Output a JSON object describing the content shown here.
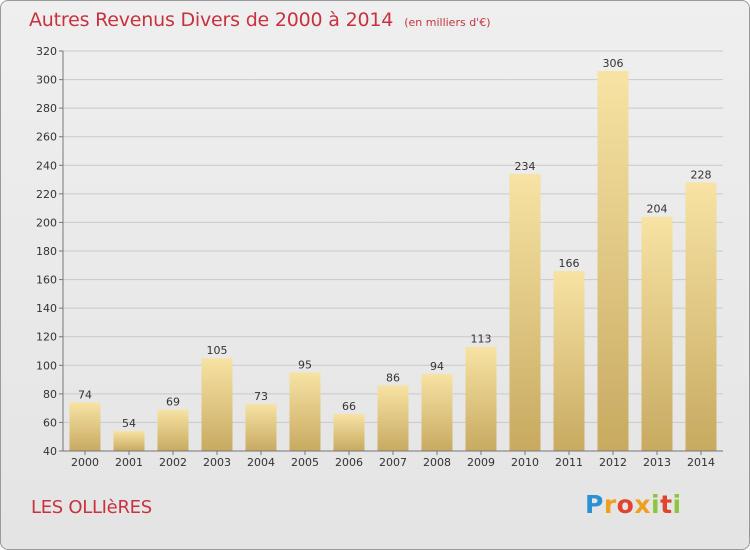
{
  "header": {
    "title": "Autres Revenus Divers de 2000 à 2014",
    "unit": "(en milliers d'€)"
  },
  "footer": {
    "commune": "LES OLLIèRES",
    "logo": "Proxiti"
  },
  "colors": {
    "title": "#c8323f",
    "bar_light": "#f6e09e",
    "bar_dark": "#c9ab62",
    "background": "#e9e9e9"
  },
  "chart_data": {
    "type": "bar",
    "title": "Autres Revenus Divers de 2000 à 2014",
    "xlabel": "",
    "ylabel": "",
    "categories": [
      "2000",
      "2001",
      "2002",
      "2003",
      "2004",
      "2005",
      "2006",
      "2007",
      "2008",
      "2009",
      "2010",
      "2011",
      "2012",
      "2013",
      "2014"
    ],
    "values": [
      74,
      54,
      69,
      105,
      73,
      95,
      66,
      86,
      94,
      113,
      234,
      166,
      306,
      204,
      228
    ],
    "ylim": [
      40,
      320
    ],
    "yticks": [
      40,
      60,
      80,
      100,
      120,
      140,
      160,
      180,
      200,
      220,
      240,
      260,
      280,
      300,
      320
    ],
    "grid": true,
    "legend": "none"
  }
}
